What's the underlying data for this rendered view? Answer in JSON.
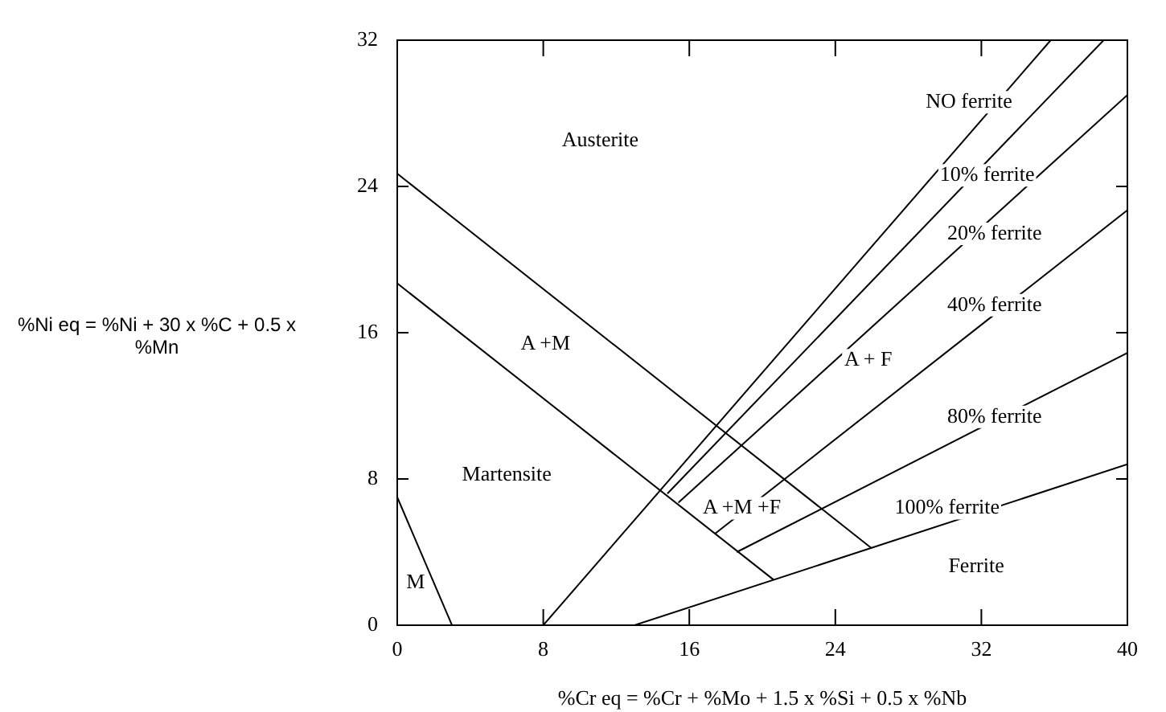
{
  "chart_data": {
    "type": "line",
    "xlabel": "%Cr eq = %Cr + %Mo + 1.5 x %Si + 0.5 x %Nb",
    "ylabel": "%Ni eq = %Ni + 30 x %C + 0.5 x %Mn",
    "xlim": [
      0,
      40
    ],
    "xticks": [
      0,
      8,
      16,
      24,
      32,
      40
    ],
    "ylim": [
      0,
      32
    ],
    "yticks": [
      0,
      8,
      16,
      24,
      32
    ],
    "legend": false,
    "marker": "none",
    "line_style": "solid",
    "series": [
      {
        "color": "#000000",
        "x": [
          0,
          3
        ],
        "values": [
          7,
          0
        ]
      },
      {
        "color": "#000000",
        "x": [
          0,
          26
        ],
        "values": [
          24.7,
          4.2
        ]
      },
      {
        "color": "#000000",
        "x": [
          0,
          20.6
        ],
        "values": [
          18.7,
          2.5
        ]
      },
      {
        "color": "#000000",
        "x": [
          8,
          35.8
        ],
        "values": [
          0,
          32
        ]
      },
      {
        "color": "#000000",
        "x": [
          14.8,
          38.7
        ],
        "values": [
          7.2,
          32
        ]
      },
      {
        "color": "#000000",
        "x": [
          15.4,
          40
        ],
        "values": [
          6.7,
          29
        ]
      },
      {
        "color": "#000000",
        "x": [
          17.4,
          40
        ],
        "values": [
          5,
          22.7
        ]
      },
      {
        "color": "#000000",
        "x": [
          18.6,
          40
        ],
        "values": [
          4,
          14.9
        ]
      },
      {
        "color": "#000000",
        "x": [
          13,
          40
        ],
        "values": [
          0,
          8.8
        ]
      }
    ],
    "annotations": [
      "Austerite",
      "A +M",
      "Martensite",
      "M",
      "A +M +F",
      "A + F",
      "NO ferrite",
      "10% ferrite",
      "20% ferrite",
      "40% ferrite",
      "80% ferrite",
      "100% ferrite",
      "Ferrite"
    ]
  }
}
